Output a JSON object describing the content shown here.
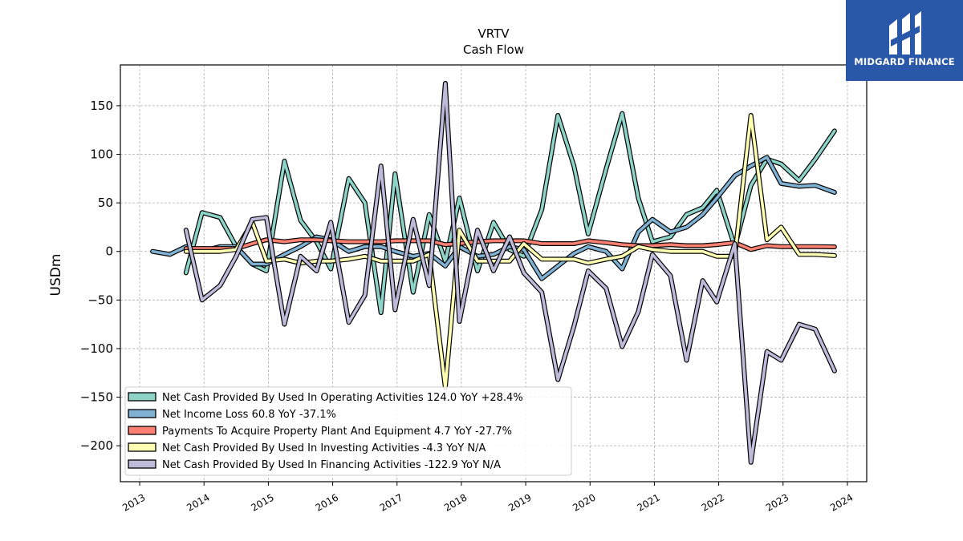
{
  "brand": {
    "name": "MIDGARD FINANCE"
  },
  "chart_data": {
    "type": "line",
    "title": "VRTV",
    "subtitle": "Cash Flow",
    "xlabel": "",
    "ylabel": "USDm",
    "xlim": [
      2012.7,
      2024.3
    ],
    "ylim": [
      -237,
      192
    ],
    "yticks": [
      150,
      100,
      50,
      0,
      -50,
      -100,
      -150,
      -200
    ],
    "xticks": [
      2013,
      2014,
      2015,
      2016,
      2017,
      2018,
      2019,
      2020,
      2021,
      2022,
      2023,
      2024
    ],
    "grid": true,
    "legend_position": "lower-left",
    "series": [
      {
        "name": "Net Cash Provided By Used In Operating Activities",
        "legend_label": "Net Cash Provided By Used In Operating Activities  124.0 YoY +28.4%",
        "color": "#8dd3c7",
        "points": [
          [
            2013.72,
            -22
          ],
          [
            2013.97,
            40
          ],
          [
            2014.25,
            35
          ],
          [
            2014.5,
            5
          ],
          [
            2014.75,
            -13
          ],
          [
            2014.97,
            -20
          ],
          [
            2015.25,
            93
          ],
          [
            2015.5,
            32
          ],
          [
            2015.75,
            10
          ],
          [
            2015.97,
            -18
          ],
          [
            2016.25,
            75
          ],
          [
            2016.5,
            50
          ],
          [
            2016.75,
            -63
          ],
          [
            2016.97,
            80
          ],
          [
            2017.25,
            -42
          ],
          [
            2017.5,
            38
          ],
          [
            2017.75,
            -10
          ],
          [
            2017.97,
            55
          ],
          [
            2018.25,
            -20
          ],
          [
            2018.5,
            30
          ],
          [
            2018.75,
            2
          ],
          [
            2018.97,
            -5
          ],
          [
            2019.25,
            43
          ],
          [
            2019.5,
            140
          ],
          [
            2019.75,
            88
          ],
          [
            2019.97,
            18
          ],
          [
            2020.25,
            85
          ],
          [
            2020.5,
            142
          ],
          [
            2020.75,
            55
          ],
          [
            2020.97,
            10
          ],
          [
            2021.25,
            15
          ],
          [
            2021.5,
            38
          ],
          [
            2021.75,
            45
          ],
          [
            2021.97,
            63
          ],
          [
            2022.25,
            5
          ],
          [
            2022.5,
            68
          ],
          [
            2022.75,
            95
          ],
          [
            2022.97,
            90
          ],
          [
            2023.25,
            73
          ],
          [
            2023.5,
            95
          ],
          [
            2023.8,
            124
          ]
        ]
      },
      {
        "name": "Net Income Loss",
        "legend_label": "Net Income Loss  60.8 YoY -37.1%",
        "color": "#80b1d3",
        "points": [
          [
            2013.2,
            0
          ],
          [
            2013.47,
            -3
          ],
          [
            2013.72,
            5
          ],
          [
            2013.97,
            0
          ],
          [
            2014.25,
            5
          ],
          [
            2014.5,
            5
          ],
          [
            2014.75,
            -13
          ],
          [
            2014.97,
            -13
          ],
          [
            2015.25,
            -3
          ],
          [
            2015.5,
            5
          ],
          [
            2015.75,
            15
          ],
          [
            2015.97,
            12
          ],
          [
            2016.25,
            0
          ],
          [
            2016.5,
            5
          ],
          [
            2016.75,
            5
          ],
          [
            2016.97,
            0
          ],
          [
            2017.25,
            -5
          ],
          [
            2017.5,
            -2
          ],
          [
            2017.75,
            -15
          ],
          [
            2017.97,
            5
          ],
          [
            2018.25,
            -5
          ],
          [
            2018.5,
            -3
          ],
          [
            2018.75,
            5
          ],
          [
            2018.97,
            2
          ],
          [
            2019.25,
            -28
          ],
          [
            2019.5,
            -15
          ],
          [
            2019.75,
            -2
          ],
          [
            2019.97,
            5
          ],
          [
            2020.25,
            0
          ],
          [
            2020.5,
            -18
          ],
          [
            2020.75,
            20
          ],
          [
            2020.97,
            33
          ],
          [
            2021.25,
            20
          ],
          [
            2021.5,
            25
          ],
          [
            2021.75,
            38
          ],
          [
            2021.97,
            55
          ],
          [
            2022.25,
            78
          ],
          [
            2022.5,
            88
          ],
          [
            2022.75,
            97
          ],
          [
            2022.97,
            70
          ],
          [
            2023.25,
            67
          ],
          [
            2023.5,
            68
          ],
          [
            2023.8,
            60.8
          ]
        ]
      },
      {
        "name": "Payments To Acquire Property Plant And Equipment",
        "legend_label": "Payments To Acquire Property Plant And Equipment  4.7 YoY -27.7%",
        "color": "#fb8072",
        "points": [
          [
            2013.72,
            3
          ],
          [
            2013.97,
            3
          ],
          [
            2014.25,
            3
          ],
          [
            2014.5,
            3
          ],
          [
            2014.75,
            8
          ],
          [
            2014.97,
            12
          ],
          [
            2015.25,
            10
          ],
          [
            2015.5,
            12
          ],
          [
            2015.75,
            12
          ],
          [
            2015.97,
            11
          ],
          [
            2016.25,
            10
          ],
          [
            2016.5,
            10
          ],
          [
            2016.75,
            10
          ],
          [
            2016.97,
            11
          ],
          [
            2017.25,
            11
          ],
          [
            2017.5,
            11
          ],
          [
            2017.75,
            7
          ],
          [
            2017.97,
            8
          ],
          [
            2018.25,
            10
          ],
          [
            2018.5,
            11
          ],
          [
            2018.75,
            11
          ],
          [
            2018.97,
            11
          ],
          [
            2019.25,
            8
          ],
          [
            2019.5,
            8
          ],
          [
            2019.75,
            8
          ],
          [
            2019.97,
            11
          ],
          [
            2020.25,
            9
          ],
          [
            2020.5,
            7
          ],
          [
            2020.75,
            6
          ],
          [
            2020.97,
            6
          ],
          [
            2021.25,
            7
          ],
          [
            2021.5,
            6
          ],
          [
            2021.75,
            6
          ],
          [
            2021.97,
            7
          ],
          [
            2022.25,
            9
          ],
          [
            2022.5,
            2
          ],
          [
            2022.75,
            6
          ],
          [
            2022.97,
            5
          ],
          [
            2023.25,
            5
          ],
          [
            2023.5,
            5
          ],
          [
            2023.8,
            4.7
          ]
        ]
      },
      {
        "name": "Net Cash Provided By Used In Investing Activities",
        "legend_label": "Net Cash Provided By Used In Investing Activities  -4.3 YoY N/A",
        "color": "#ffffb3",
        "points": [
          [
            2013.72,
            0
          ],
          [
            2013.97,
            0
          ],
          [
            2014.25,
            0
          ],
          [
            2014.5,
            2
          ],
          [
            2014.75,
            30
          ],
          [
            2014.97,
            -10
          ],
          [
            2015.25,
            -8
          ],
          [
            2015.5,
            -12
          ],
          [
            2015.75,
            -10
          ],
          [
            2015.97,
            -10
          ],
          [
            2016.25,
            -8
          ],
          [
            2016.5,
            -5
          ],
          [
            2016.75,
            -10
          ],
          [
            2016.97,
            -10
          ],
          [
            2017.25,
            -10
          ],
          [
            2017.5,
            -3
          ],
          [
            2017.75,
            -140
          ],
          [
            2017.97,
            22
          ],
          [
            2018.25,
            -10
          ],
          [
            2018.5,
            -10
          ],
          [
            2018.75,
            -10
          ],
          [
            2018.97,
            8
          ],
          [
            2019.25,
            -8
          ],
          [
            2019.5,
            -8
          ],
          [
            2019.75,
            -8
          ],
          [
            2019.97,
            -12
          ],
          [
            2020.25,
            -8
          ],
          [
            2020.5,
            -5
          ],
          [
            2020.75,
            5
          ],
          [
            2020.97,
            2
          ],
          [
            2021.25,
            0
          ],
          [
            2021.5,
            0
          ],
          [
            2021.75,
            0
          ],
          [
            2021.97,
            -5
          ],
          [
            2022.25,
            -5
          ],
          [
            2022.5,
            140
          ],
          [
            2022.75,
            12
          ],
          [
            2022.97,
            25
          ],
          [
            2023.25,
            -3
          ],
          [
            2023.5,
            -3
          ],
          [
            2023.8,
            -4.3
          ]
        ]
      },
      {
        "name": "Net Cash Provided By Used In Financing Activities",
        "legend_label": "Net Cash Provided By Used In Financing Activities  -122.9 YoY N/A",
        "color": "#bebada",
        "points": [
          [
            2013.72,
            22
          ],
          [
            2013.97,
            -50
          ],
          [
            2014.25,
            -35
          ],
          [
            2014.5,
            -5
          ],
          [
            2014.75,
            33
          ],
          [
            2014.97,
            35
          ],
          [
            2015.25,
            -75
          ],
          [
            2015.5,
            -5
          ],
          [
            2015.75,
            -20
          ],
          [
            2015.97,
            30
          ],
          [
            2016.25,
            -73
          ],
          [
            2016.5,
            -45
          ],
          [
            2016.75,
            88
          ],
          [
            2016.97,
            -60
          ],
          [
            2017.25,
            33
          ],
          [
            2017.5,
            -35
          ],
          [
            2017.75,
            173
          ],
          [
            2017.97,
            -72
          ],
          [
            2018.25,
            22
          ],
          [
            2018.5,
            -20
          ],
          [
            2018.75,
            15
          ],
          [
            2018.97,
            -22
          ],
          [
            2019.25,
            -42
          ],
          [
            2019.5,
            -132
          ],
          [
            2019.75,
            -77
          ],
          [
            2019.97,
            -20
          ],
          [
            2020.25,
            -38
          ],
          [
            2020.5,
            -98
          ],
          [
            2020.75,
            -62
          ],
          [
            2020.97,
            -3
          ],
          [
            2021.25,
            -25
          ],
          [
            2021.5,
            -112
          ],
          [
            2021.75,
            -30
          ],
          [
            2021.97,
            -52
          ],
          [
            2022.25,
            8
          ],
          [
            2022.5,
            -217
          ],
          [
            2022.75,
            -103
          ],
          [
            2022.97,
            -112
          ],
          [
            2023.25,
            -75
          ],
          [
            2023.5,
            -80
          ],
          [
            2023.8,
            -122.9
          ]
        ]
      }
    ]
  }
}
